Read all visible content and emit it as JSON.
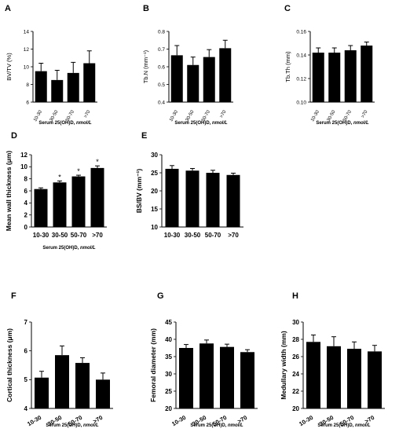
{
  "figure": {
    "background": "#ffffff",
    "bar_color": "#000000"
  },
  "chart_data": [
    {
      "panel": "A",
      "type": "bar",
      "categories": [
        "10-30",
        "30-50",
        "50-70",
        ">70"
      ],
      "values": [
        9.5,
        8.5,
        9.3,
        10.4
      ],
      "errors": [
        0.9,
        1.1,
        1.2,
        1.4
      ],
      "ylabel": "BV/TV (%)",
      "xlabel": "Serum 25(OH)D, nmol/L",
      "ylim": [
        6,
        14
      ],
      "yticks": [
        "6",
        "8",
        "10",
        "12",
        "14"
      ],
      "markers": [
        "",
        "",
        "",
        ""
      ]
    },
    {
      "panel": "B",
      "type": "bar",
      "categories": [
        "10-30",
        "30-50",
        "50-70",
        ">70"
      ],
      "values": [
        0.665,
        0.61,
        0.655,
        0.705
      ],
      "errors": [
        0.055,
        0.045,
        0.042,
        0.045
      ],
      "ylabel": "Tb.N (mm⁻¹)",
      "xlabel": "Serum 25(OH)D, nmol/L",
      "ylim": [
        0.4,
        0.8
      ],
      "yticks": [
        "0.4",
        "0.5",
        "0.6",
        "0.7",
        "0.8"
      ],
      "markers": [
        "",
        "",
        "",
        ""
      ]
    },
    {
      "panel": "C",
      "type": "bar",
      "categories": [
        "10-30",
        "30-50",
        "50-70",
        ">70"
      ],
      "values": [
        0.142,
        0.142,
        0.144,
        0.148
      ],
      "errors": [
        0.004,
        0.004,
        0.004,
        0.003
      ],
      "ylabel": "Tb.Th (mm)",
      "xlabel": "Serum 25(OH)D, nmol/L",
      "ylim": [
        0.1,
        0.16
      ],
      "yticks": [
        "0.10",
        "0.12",
        "0.14",
        "0.16"
      ],
      "markers": [
        "",
        "",
        "",
        ""
      ]
    },
    {
      "panel": "D",
      "type": "bar",
      "categories": [
        "10-30",
        "30-50",
        "50-70",
        ">70"
      ],
      "values": [
        6.3,
        7.4,
        8.4,
        9.8
      ],
      "errors": [
        0.2,
        0.25,
        0.2,
        0.35
      ],
      "ylabel": "Mean wall thickness (μm)",
      "xlabel": "Serum 25(OH)D, nmol/L",
      "ylim": [
        0,
        12
      ],
      "yticks": [
        "0",
        "2",
        "4",
        "6",
        "8",
        "10",
        "12"
      ],
      "markers": [
        "",
        "*",
        "*",
        "*"
      ]
    },
    {
      "panel": "E",
      "type": "bar",
      "categories": [
        "10-30",
        "30-50",
        "50-70",
        ">70"
      ],
      "values": [
        26.1,
        25.6,
        25.0,
        24.4
      ],
      "errors": [
        0.9,
        0.6,
        0.7,
        0.5
      ],
      "ylabel": "BS/BV (mm⁻¹)",
      "xlabel": "",
      "ylim": [
        10,
        30
      ],
      "yticks": [
        "10",
        "15",
        "20",
        "25",
        "30"
      ],
      "markers": [
        "",
        "",
        "",
        ""
      ]
    },
    {
      "panel": "F",
      "type": "bar",
      "categories": [
        "10-30",
        "30-50",
        "50-70",
        ">70"
      ],
      "values": [
        5.07,
        5.85,
        5.58,
        5.0
      ],
      "errors": [
        0.22,
        0.32,
        0.18,
        0.23
      ],
      "ylabel": "Cortical thickness (μm)",
      "xlabel": "Serum 25(OH)D, nmol/L",
      "ylim": [
        4,
        7
      ],
      "yticks": [
        "4",
        "5",
        "6",
        "7"
      ],
      "markers": [
        "",
        "",
        "",
        ""
      ]
    },
    {
      "panel": "G",
      "type": "bar",
      "categories": [
        "10-30",
        "30-50",
        "50-70",
        ">70"
      ],
      "values": [
        37.5,
        38.8,
        37.8,
        36.3
      ],
      "errors": [
        1.0,
        1.0,
        0.8,
        0.7
      ],
      "ylabel": "Femoral diameter (mm)",
      "xlabel": "Serum 25(OH)D, nmol/L",
      "ylim": [
        20,
        45
      ],
      "yticks": [
        "20",
        "25",
        "30",
        "35",
        "40",
        "45"
      ],
      "markers": [
        "",
        "",
        "",
        ""
      ]
    },
    {
      "panel": "H",
      "type": "bar",
      "categories": [
        "10-30",
        "30-50",
        "50-70",
        ">70"
      ],
      "values": [
        27.7,
        27.2,
        26.9,
        26.6
      ],
      "errors": [
        0.8,
        1.1,
        0.8,
        0.7
      ],
      "ylabel": "Medullary width (mm)",
      "xlabel": "Serum 25(OH)D, nmol/L",
      "ylim": [
        20,
        30
      ],
      "yticks": [
        "20",
        "22",
        "24",
        "26",
        "28",
        "30"
      ],
      "markers": [
        "",
        "",
        "",
        ""
      ]
    }
  ]
}
